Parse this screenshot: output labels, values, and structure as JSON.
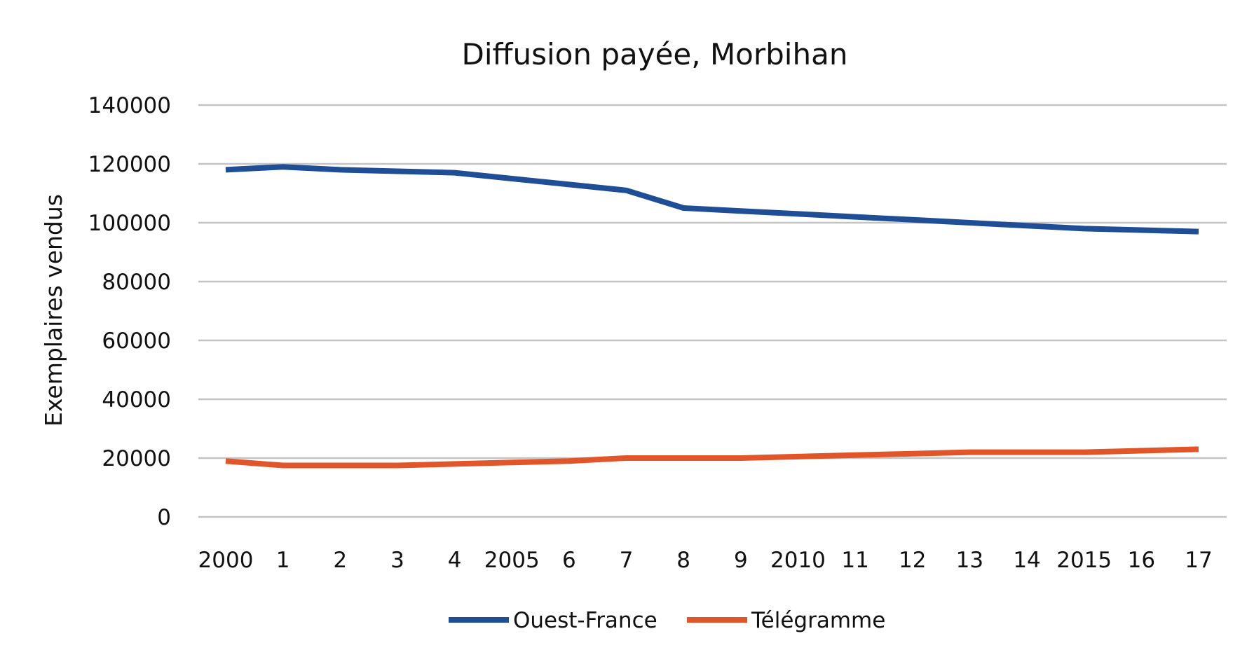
{
  "chart_data": {
    "type": "line",
    "title": "Diffusion payée, Morbihan",
    "xlabel": "",
    "ylabel": "Exemplaires vendus",
    "ylim": [
      0,
      140000
    ],
    "yticks": [
      "0",
      "20000",
      "40000",
      "60000",
      "80000",
      "100000",
      "120000",
      "140000"
    ],
    "categories": [
      "2000",
      "1",
      "2",
      "3",
      "4",
      "2005",
      "6",
      "7",
      "8",
      "9",
      "2010",
      "11",
      "12",
      "13",
      "14",
      "2015",
      "16",
      "17"
    ],
    "grid": true,
    "legend_position": "bottom",
    "series": [
      {
        "name": "Ouest-France",
        "color": "#1f4e96",
        "values": [
          118000,
          119000,
          118000,
          117500,
          117000,
          115000,
          113000,
          111000,
          105000,
          104000,
          103000,
          102000,
          101000,
          100000,
          99000,
          98000,
          97500,
          97000
        ]
      },
      {
        "name": "Télégramme",
        "color": "#e0562a",
        "values": [
          19000,
          17500,
          17500,
          17500,
          18000,
          18500,
          19000,
          20000,
          20000,
          20000,
          20500,
          21000,
          21500,
          22000,
          22000,
          22000,
          22500,
          23000
        ]
      }
    ]
  }
}
